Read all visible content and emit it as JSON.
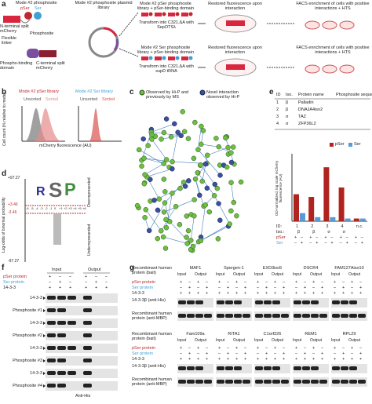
{
  "panels": [
    "a",
    "b",
    "c",
    "d",
    "e",
    "f",
    "g"
  ],
  "a": {
    "phosphosite": "Mode #2 phosphosite",
    "pser": "pSer",
    "ser": "Ser",
    "n_term": "N-terminal split mCherry",
    "linker": "Flexible linker",
    "site": "Phosphosite",
    "domain": "Phospho-binding domain",
    "c_term": "C-terminal split mCherry",
    "plasmid": "Mode #2 phosphosite plasmid library",
    "rows": [
      {
        "library": "Mode #2 pSer phosphosite library + pSer-binding domain",
        "transform": "Transform into C321.ΔA with SepOTSλ",
        "restored": "Restored fluorescence upon interaction",
        "facs": "FACS enrichment of cells with positive interactions + HTS"
      },
      {
        "library": "Mode #2 Ser phosphosite library + pSer-binding domain",
        "transform": "Transform into C321.ΔA with supD tRNA",
        "restored": "Restored fluorescence upon interaction",
        "facs": "FACS enrichment of cells with positive interactions + HTS"
      }
    ]
  },
  "b": {
    "titles": [
      "Mode #2 pSer library",
      "Mode #2 Ser library"
    ],
    "unsorted": "Unsorted",
    "sorted": "Sorted",
    "ylabel": "Cell count (% relative to mode)",
    "xlabel": "mCherry fluorescence (AU)"
  },
  "c": {
    "legend": [
      "Observed by Hi-P and previously by MS",
      "Novel interaction observed by Hi-P"
    ]
  },
  "d": {
    "yticks": [
      "+97.27",
      "+3.46",
      "-3.46",
      "-97.27"
    ],
    "ylabel": "Log-odds of binomial probability",
    "over": "Overrepresented",
    "under": "Underrepresented",
    "positions": [
      "-6",
      "-5",
      "-4",
      "-3",
      "-2",
      "-1",
      "0",
      "+1",
      "+2",
      "+3",
      "+4",
      "+5",
      "+6"
    ],
    "logo": [
      "R",
      "S",
      "P"
    ]
  },
  "e": {
    "headers": [
      "ID",
      "Iso.",
      "Protein name",
      "Phosphosite sequence"
    ],
    "rows": [
      [
        "1",
        "β",
        "Palladin"
      ],
      [
        "2",
        "β",
        "DNAJA4iso2"
      ],
      [
        "3",
        "σ",
        "TAZ"
      ],
      [
        "4",
        "σ",
        "ZFP36L2"
      ]
    ]
  },
  "chart_data": {
    "type": "bar",
    "ylabel": "OD-normalized, log scale mCherry fluorescence (AU)",
    "categories": [
      "1",
      "2",
      "3",
      "4",
      "n.c."
    ],
    "iso": [
      "β",
      "β",
      "σ",
      "σ",
      null
    ],
    "row_labels": [
      "ID:",
      "Iso.:"
    ],
    "series": [
      {
        "name": "pSer",
        "color": "#b0231e",
        "values": [
          2.0,
          1.8,
          4.0,
          2.5,
          0.2
        ]
      },
      {
        "name": "Ser",
        "color": "#5b9bd5",
        "values": [
          0.6,
          0.3,
          0.3,
          0.2,
          0.2
        ]
      }
    ],
    "signs": [
      [
        "+",
        "–",
        "+",
        "–",
        "+",
        "–",
        "+",
        "–",
        "+",
        "–"
      ],
      [
        "–",
        "+",
        "–",
        "+",
        "–",
        "+",
        "–",
        "+",
        "–",
        "+"
      ]
    ],
    "ylim": [
      0,
      5
    ]
  },
  "f": {
    "rows": [
      "pSer protein",
      "Ser protein",
      "14-3-3"
    ],
    "groups": [
      "Input",
      "Output"
    ],
    "signs": [
      [
        "+",
        "–",
        "–",
        "+",
        "–",
        "–"
      ],
      [
        "–",
        "+",
        "–",
        "–",
        "+",
        "–"
      ],
      [
        "+",
        "+",
        "+",
        "+",
        "+",
        "+"
      ]
    ],
    "blots": [
      "14-3-3",
      "Phosphosite #1",
      "14-3-3",
      "Phosphosite #2",
      "14-3-3",
      "Phosphosite #3",
      "14-3-3",
      "Phosphosite #4"
    ],
    "antibody": "Anti-His"
  },
  "g": {
    "bait": "Recombinant human protein (bait)",
    "rows": [
      "pSer protein",
      "Ser protein",
      "14-3-3"
    ],
    "groups": [
      "Input",
      "Output"
    ],
    "signs": [
      [
        "+",
        "–",
        "+",
        "–"
      ],
      [
        "–",
        "+",
        "–",
        "+"
      ],
      [
        "+",
        "+",
        "+",
        "+"
      ]
    ],
    "blots": [
      "14-3-3β (anti-His)",
      "Recombinant human protein (anti-MBP)"
    ],
    "proteins": [
      [
        "MAF1",
        "Spergen-1",
        "EXD3iso5",
        "DSCR4",
        "FAM127Aiso10"
      ],
      [
        "Fam109a",
        "RITA1",
        "C1orf226",
        "REM1",
        "RPL29"
      ]
    ]
  }
}
